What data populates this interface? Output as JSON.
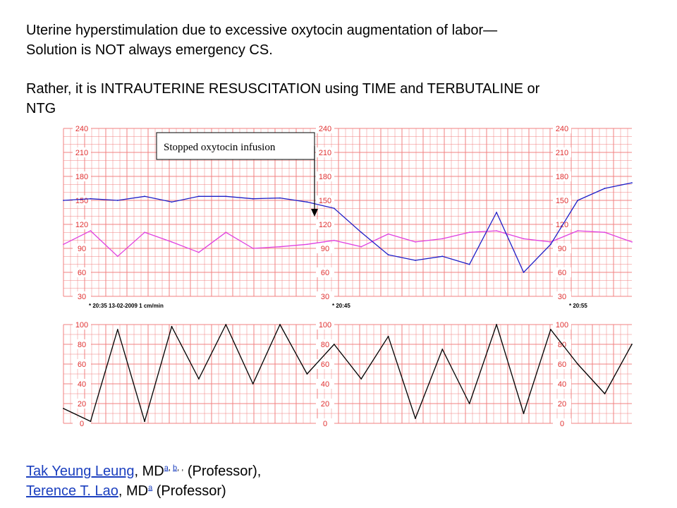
{
  "heading": {
    "line1": "Uterine hyperstimulation due to excessive oxytocin augmentation of labor—",
    "line2": "Solution is NOT always emergency CS.",
    "line3": "Rather, it is INTRAUTERINE RESUSCITATION using TIME and TERBUTALINE or",
    "line4": "NTG"
  },
  "chart_data": {
    "type": "line",
    "title": "",
    "annotation": "Stopped oxytocin infusion",
    "time_labels": [
      "* 20:35  13-02-2009  1 cm/min",
      "* 20:45",
      "* 20:55"
    ],
    "fhr_axis": {
      "ticks": [
        "240",
        "210",
        "180",
        "150",
        "120",
        "90",
        "60",
        "30"
      ],
      "ylim": [
        30,
        240
      ]
    },
    "uc_axis": {
      "ticks": [
        "100",
        "80",
        "60",
        "40",
        "20",
        "0"
      ],
      "ylim": [
        0,
        100
      ]
    },
    "colors": {
      "grid": "#f08080",
      "fhr": "#1f1fc8",
      "maternal": "#e040e0",
      "uc": "#000000"
    },
    "fhr_trace": {
      "x": [
        0,
        1,
        2,
        3,
        4,
        5,
        6,
        7,
        8,
        9,
        10,
        11,
        12,
        13,
        14,
        15,
        16,
        17,
        18,
        19,
        20,
        21
      ],
      "y": [
        150,
        152,
        150,
        155,
        148,
        155,
        155,
        152,
        153,
        148,
        140,
        110,
        82,
        75,
        80,
        70,
        135,
        60,
        95,
        150,
        165,
        172
      ]
    },
    "maternal_trace": {
      "x": [
        0,
        1,
        2,
        3,
        4,
        5,
        6,
        7,
        8,
        9,
        10,
        11,
        12,
        13,
        14,
        15,
        16,
        17,
        18,
        19,
        20,
        21
      ],
      "y": [
        95,
        112,
        80,
        110,
        98,
        85,
        110,
        90,
        92,
        95,
        100,
        92,
        108,
        98,
        102,
        110,
        112,
        102,
        98,
        112,
        110,
        98
      ]
    },
    "uc_trace": {
      "x": [
        0,
        1,
        2,
        3,
        4,
        5,
        6,
        7,
        8,
        9,
        10,
        11,
        12,
        13,
        14,
        15,
        16,
        17,
        18,
        19,
        20,
        21
      ],
      "y": [
        15,
        2,
        95,
        2,
        98,
        45,
        100,
        40,
        100,
        50,
        80,
        45,
        88,
        5,
        75,
        20,
        100,
        10,
        95,
        60,
        30,
        80
      ]
    }
  },
  "authors": {
    "author1": {
      "name": "Tak Yeung Leung",
      "degree": ", MD",
      "sup_a": "a",
      "sep1": ", ",
      "sup_b": "b",
      "sep2": ", ,",
      "role": " (Professor),",
      "comma": ""
    },
    "author2": {
      "name": "Terence T. Lao",
      "degree": ", MD",
      "sup_a": "a",
      "role": " (Professor)"
    }
  }
}
